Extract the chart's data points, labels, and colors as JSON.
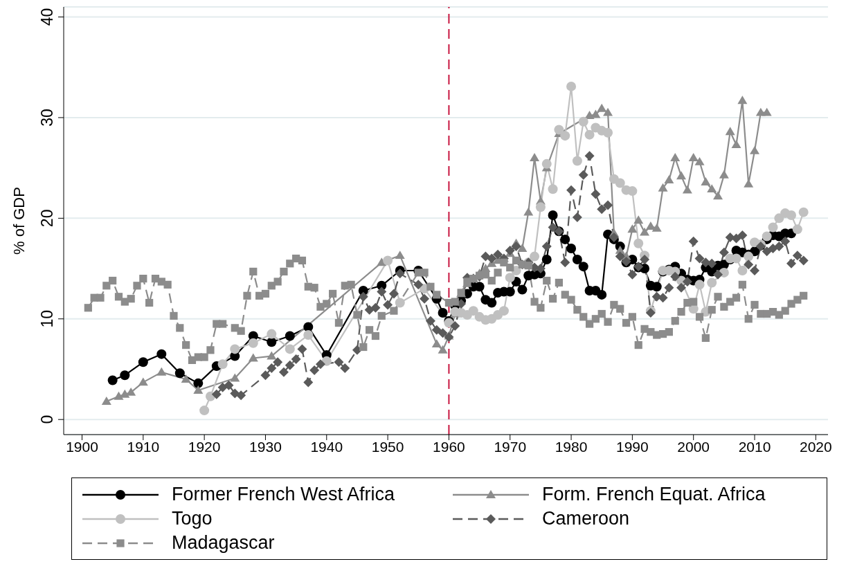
{
  "chart_data": {
    "type": "line",
    "ylabel": "% of GDP",
    "xlim": [
      1897,
      2022
    ],
    "xticks": [
      1900,
      1910,
      1920,
      1930,
      1940,
      1950,
      1960,
      1970,
      1980,
      1990,
      2000,
      2010,
      2020
    ],
    "ylim": [
      -1.5,
      41
    ],
    "yticks": [
      0,
      10,
      20,
      30,
      40
    ],
    "grid": "y",
    "legend": "bottom",
    "ref_lines": [
      {
        "axis": "x",
        "value": 1960,
        "color": "#c8163f",
        "line_style": "dashed"
      }
    ],
    "series": [
      {
        "name": "Former French West Africa",
        "color": "#000000",
        "marker": "circle",
        "line_style": "solid",
        "x": [
          1905,
          1907,
          1910,
          1913,
          1916,
          1919,
          1922,
          1925,
          1928,
          1931,
          1934,
          1937,
          1940,
          1946,
          1949,
          1952,
          1955,
          1958,
          1959,
          1960,
          1961,
          1962,
          1963,
          1964,
          1965,
          1966,
          1967,
          1968,
          1969,
          1970,
          1971,
          1972,
          1973,
          1974,
          1975,
          1976,
          1977,
          1978,
          1979,
          1980,
          1981,
          1982,
          1983,
          1984,
          1985,
          1986,
          1987,
          1988,
          1989,
          1990,
          1991,
          1992,
          1993,
          1994,
          1995,
          1996,
          1997,
          1998,
          1999,
          2000,
          2001,
          2002,
          2003,
          2004,
          2005,
          2006,
          2007,
          2008,
          2009,
          2010,
          2011,
          2012,
          2013,
          2014,
          2015,
          2016
        ],
        "values": [
          3.9,
          4.4,
          5.7,
          6.5,
          4.6,
          3.6,
          5.3,
          6.3,
          8.3,
          7.7,
          8.3,
          9.2,
          6.4,
          12.8,
          13.3,
          14.8,
          14.8,
          12.0,
          10.6,
          9.8,
          11.3,
          11.8,
          12.5,
          13.2,
          13.2,
          11.9,
          11.6,
          12.6,
          12.7,
          12.7,
          13.7,
          12.9,
          14.3,
          14.4,
          14.5,
          15.9,
          20.3,
          18.7,
          17.9,
          17.0,
          15.9,
          15.2,
          12.8,
          12.8,
          12.4,
          18.4,
          17.9,
          17.2,
          15.6,
          15.9,
          15.1,
          15.0,
          13.3,
          13.2,
          14.7,
          14.9,
          15.2,
          14.5,
          13.9,
          13.8,
          13.9,
          15.1,
          14.7,
          15.3,
          15.4,
          15.9,
          16.8,
          16.6,
          16.4,
          16.7,
          17.3,
          17.9,
          18.3,
          18.2,
          18.5,
          18.5
        ]
      },
      {
        "name": "Form. French Equat. Africa",
        "color": "#8c8c8c",
        "marker": "triangle",
        "line_style": "solid",
        "x": [
          1904,
          1906,
          1907,
          1908,
          1910,
          1913,
          1917,
          1919,
          1925,
          1928,
          1931,
          1949,
          1952,
          1958,
          1959,
          1960,
          1961,
          1962,
          1963,
          1964,
          1965,
          1966,
          1967,
          1968,
          1969,
          1970,
          1971,
          1972,
          1973,
          1974,
          1975,
          1976,
          1978,
          1983,
          1984,
          1985,
          1986,
          1987,
          1988,
          1989,
          1990,
          1991,
          1992,
          1993,
          1994,
          1995,
          1996,
          1997,
          1998,
          1999,
          2000,
          2001,
          2002,
          2003,
          2004,
          2005,
          2006,
          2007,
          2008,
          2009,
          2010,
          2011,
          2012
        ],
        "values": [
          1.8,
          2.3,
          2.5,
          2.7,
          3.7,
          4.7,
          4.0,
          2.9,
          4.1,
          6.1,
          6.3,
          15.6,
          16.3,
          7.5,
          6.9,
          8.3,
          10.5,
          12.5,
          13.5,
          14.0,
          14.5,
          15.0,
          15.5,
          15.8,
          16.0,
          16.5,
          17.5,
          17.0,
          20.6,
          26.0,
          21.7,
          25.0,
          28.4,
          30.2,
          30.3,
          30.9,
          30.5,
          18.5,
          16.8,
          16.2,
          18.9,
          19.8,
          18.6,
          19.2,
          19.0,
          23.0,
          23.8,
          26.0,
          24.2,
          22.8,
          26.0,
          25.6,
          23.6,
          22.9,
          22.2,
          24.3,
          28.6,
          27.3,
          31.7,
          23.4,
          26.7,
          30.5,
          30.5
        ]
      },
      {
        "name": "Togo",
        "color": "#c0c0c0",
        "marker": "circle",
        "line_style": "solid",
        "x": [
          1920,
          1921,
          1923,
          1925,
          1928,
          1931,
          1934,
          1937,
          1940,
          1950,
          1952,
          1956,
          1960,
          1961,
          1962,
          1963,
          1964,
          1965,
          1966,
          1967,
          1968,
          1969,
          1970,
          1971,
          1972,
          1973,
          1974,
          1975,
          1976,
          1977,
          1978,
          1979,
          1980,
          1981,
          1982,
          1983,
          1984,
          1985,
          1986,
          1987,
          1988,
          1989,
          1990,
          1991,
          1992,
          1993,
          1995,
          1996,
          1997,
          1998,
          2000,
          2001,
          2002,
          2003,
          2005,
          2006,
          2007,
          2008,
          2009,
          2010,
          2011,
          2012,
          2013,
          2014,
          2015,
          2016,
          2017,
          2018
        ],
        "values": [
          0.9,
          2.3,
          5.5,
          7.0,
          7.6,
          8.5,
          7.0,
          8.4,
          5.8,
          15.8,
          11.6,
          13.0,
          9.6,
          10.7,
          10.6,
          10.4,
          10.8,
          10.2,
          9.9,
          10.0,
          10.4,
          10.8,
          14.1,
          14.8,
          null,
          15.6,
          16.2,
          21.1,
          25.4,
          22.9,
          28.8,
          28.2,
          33.1,
          25.7,
          29.6,
          28.3,
          29.0,
          28.7,
          28.5,
          23.9,
          23.5,
          22.8,
          22.7,
          17.5,
          16.3,
          10.8,
          14.8,
          14.8,
          14.7,
          13.8,
          11.0,
          13.4,
          10.7,
          13.6,
          14.6,
          16.0,
          16.0,
          14.8,
          16.2,
          17.6,
          17.4,
          18.2,
          19.1,
          20.0,
          20.5,
          20.3,
          18.9,
          20.6
        ]
      },
      {
        "name": "Cameroon",
        "color": "#5a5a5a",
        "marker": "diamond",
        "line_style": "dashed",
        "x": [
          1922,
          1923,
          1924,
          1925,
          1926,
          1930,
          1931,
          1932,
          1933,
          1934,
          1935,
          1936,
          1937,
          1938,
          1939,
          1942,
          1943,
          1945,
          1946,
          1947,
          1948,
          1949,
          1950,
          1951,
          1952,
          1955,
          1956,
          1957,
          1958,
          1959,
          1960,
          1961,
          1962,
          1963,
          1964,
          1965,
          1966,
          1967,
          1968,
          1969,
          1970,
          1971,
          1972,
          1973,
          1974,
          1975,
          1976,
          1977,
          1978,
          1979,
          1980,
          1981,
          1982,
          1983,
          1984,
          1985,
          1986,
          1987,
          1988,
          1989,
          1990,
          1991,
          1992,
          1993,
          1994,
          1995,
          1996,
          1997,
          1998,
          1999,
          2000,
          2001,
          2002,
          2003,
          2004,
          2005,
          2006,
          2007,
          2008,
          2009,
          2010,
          2011,
          2012,
          2013,
          2014,
          2015,
          2016,
          2017,
          2018
        ],
        "values": [
          2.5,
          3.2,
          3.4,
          2.6,
          2.4,
          4.4,
          5.1,
          5.7,
          4.7,
          5.4,
          6.0,
          7.0,
          3.7,
          4.9,
          5.5,
          5.7,
          5.1,
          6.9,
          12.2,
          10.9,
          11.1,
          12.7,
          11.4,
          12.5,
          14.5,
          13.4,
          12.0,
          9.8,
          8.9,
          8.6,
          8.2,
          9.3,
          11.5,
          14.1,
          14.0,
          14.2,
          16.2,
          16.0,
          16.4,
          16.0,
          16.8,
          17.2,
          15.4,
          15.6,
          15.1,
          15.0,
          17.2,
          19.1,
          18.7,
          15.6,
          22.8,
          20.1,
          24.3,
          26.2,
          22.4,
          20.9,
          21.3,
          18.1,
          16.2,
          15.7,
          14.4,
          15.2,
          15.9,
          10.6,
          12.2,
          12.1,
          13.1,
          14.2,
          13.1,
          13.7,
          17.7,
          16.0,
          15.6,
          15.5,
          14.4,
          16.6,
          18.1,
          18.0,
          18.3,
          15.4,
          14.8,
          17.2,
          16.7,
          17.0,
          17.2,
          17.7,
          15.5,
          16.3,
          15.8
        ]
      },
      {
        "name": "Madagascar",
        "color": "#8c8c8c",
        "marker": "square",
        "line_style": "dashed",
        "x": [
          1901,
          1902,
          1903,
          1904,
          1905,
          1906,
          1907,
          1908,
          1909,
          1910,
          1911,
          1912,
          1913,
          1914,
          1915,
          1916,
          1917,
          1918,
          1919,
          1920,
          1921,
          1922,
          1923,
          1925,
          1926,
          1927,
          1928,
          1929,
          1930,
          1931,
          1932,
          1933,
          1934,
          1935,
          1936,
          1937,
          1938,
          1939,
          1940,
          1941,
          1942,
          1943,
          1944,
          1945,
          1946,
          1947,
          1948,
          1949,
          1951,
          1955,
          1956,
          1957,
          1958,
          1960,
          1961,
          1962,
          1963,
          1964,
          1965,
          1966,
          1967,
          1968,
          1969,
          1970,
          1971,
          1972,
          1973,
          1974,
          1975,
          1976,
          1977,
          1978,
          1979,
          1980,
          1981,
          1982,
          1983,
          1984,
          1985,
          1986,
          1987,
          1988,
          1989,
          1990,
          1991,
          1992,
          1993,
          1994,
          1995,
          1996,
          1997,
          1998,
          1999,
          2000,
          2001,
          2002,
          2003,
          2004,
          2005,
          2006,
          2007,
          2008,
          2009,
          2010,
          2011,
          2012,
          2013,
          2014,
          2015,
          2016,
          2017,
          2018
        ],
        "values": [
          11.1,
          12.1,
          12.1,
          13.3,
          13.8,
          12.2,
          11.7,
          12.0,
          13.3,
          14.0,
          11.6,
          14.0,
          13.7,
          13.4,
          10.3,
          9.1,
          7.4,
          5.9,
          6.2,
          6.2,
          6.9,
          9.5,
          9.5,
          9.1,
          8.8,
          12.3,
          14.7,
          12.3,
          12.5,
          13.3,
          13.7,
          14.7,
          15.5,
          16.0,
          15.8,
          13.2,
          13.1,
          11.2,
          11.5,
          12.5,
          9.6,
          13.3,
          13.4,
          10.4,
          7.2,
          8.9,
          8.3,
          10.3,
          10.8,
          14.6,
          14.6,
          13.2,
          12.4,
          11.6,
          11.7,
          12.6,
          13.7,
          14.0,
          14.3,
          14.4,
          13.8,
          14.6,
          15.6,
          15.1,
          15.8,
          15.4,
          15.3,
          11.7,
          11.1,
          13.8,
          12.0,
          13.6,
          12.4,
          11.9,
          10.9,
          10.2,
          9.5,
          10.0,
          10.5,
          9.7,
          11.4,
          11.0,
          9.6,
          10.2,
          7.4,
          9.0,
          8.7,
          8.4,
          8.5,
          8.7,
          9.8,
          10.7,
          11.6,
          11.7,
          10.2,
          8.1,
          10.9,
          12.2,
          11.2,
          11.7,
          12.1,
          13.4,
          10.0,
          11.4,
          10.5,
          10.5,
          10.7,
          10.4,
          10.8,
          11.5,
          11.9,
          12.3
        ]
      }
    ]
  }
}
